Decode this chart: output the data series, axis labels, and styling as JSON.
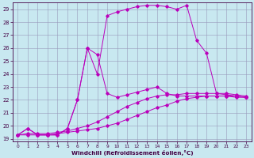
{
  "xlabel": "Windchill (Refroidissement éolien,°C)",
  "background_color": "#c8e8f0",
  "grid_color": "#9999bb",
  "line_color": "#bb00bb",
  "xlim_min": -0.5,
  "xlim_max": 23.5,
  "ylim_min": 18.8,
  "ylim_max": 29.5,
  "xticks": [
    0,
    1,
    2,
    3,
    4,
    5,
    6,
    7,
    8,
    9,
    10,
    11,
    12,
    13,
    14,
    15,
    16,
    17,
    18,
    19,
    20,
    21,
    22,
    23
  ],
  "yticks": [
    19,
    20,
    21,
    22,
    23,
    24,
    25,
    26,
    27,
    28,
    29
  ],
  "series": [
    {
      "x": [
        0,
        1,
        2,
        3,
        4,
        5,
        6,
        7,
        8,
        9,
        10,
        11,
        12,
        13,
        14,
        15,
        16,
        17,
        18,
        19,
        20,
        21,
        22,
        23
      ],
      "y": [
        19.3,
        19.3,
        19.3,
        19.3,
        19.4,
        19.5,
        19.6,
        19.7,
        19.8,
        20.0,
        20.2,
        20.5,
        20.8,
        21.1,
        21.4,
        21.6,
        21.9,
        22.1,
        22.2,
        22.3,
        22.3,
        22.3,
        22.3,
        22.2
      ]
    },
    {
      "x": [
        0,
        1,
        2,
        3,
        4,
        5,
        6,
        7,
        8,
        9,
        10,
        11,
        12,
        13,
        14,
        15,
        16,
        17,
        18,
        19,
        20,
        21,
        22,
        23
      ],
      "y": [
        19.3,
        19.4,
        19.4,
        19.4,
        19.5,
        19.6,
        19.8,
        20.0,
        20.3,
        20.7,
        21.1,
        21.5,
        21.8,
        22.1,
        22.3,
        22.4,
        22.4,
        22.5,
        22.5,
        22.5,
        22.5,
        22.5,
        22.4,
        22.3
      ]
    },
    {
      "x": [
        0,
        1,
        2,
        3,
        4,
        5,
        6,
        7,
        8,
        9,
        10,
        11,
        12,
        13,
        14,
        15,
        16,
        17,
        18,
        19,
        20,
        21,
        22,
        23
      ],
      "y": [
        19.3,
        19.8,
        19.3,
        19.3,
        19.3,
        19.8,
        22.0,
        26.0,
        25.5,
        22.5,
        22.2,
        22.4,
        22.6,
        22.8,
        23.0,
        22.5,
        22.3,
        22.3,
        22.3,
        22.3,
        22.3,
        22.3,
        22.2,
        22.2
      ]
    },
    {
      "x": [
        0,
        1,
        2,
        3,
        4,
        5,
        6,
        7,
        8,
        9,
        10,
        11,
        12,
        13,
        14,
        15,
        16,
        17,
        18,
        19,
        20,
        21,
        22,
        23
      ],
      "y": [
        19.3,
        19.8,
        19.3,
        19.3,
        19.3,
        19.8,
        22.0,
        26.0,
        24.0,
        28.5,
        28.8,
        29.0,
        29.2,
        29.3,
        29.3,
        29.2,
        29.0,
        29.3,
        26.6,
        25.6,
        22.5,
        22.4,
        22.3,
        22.2
      ]
    }
  ]
}
